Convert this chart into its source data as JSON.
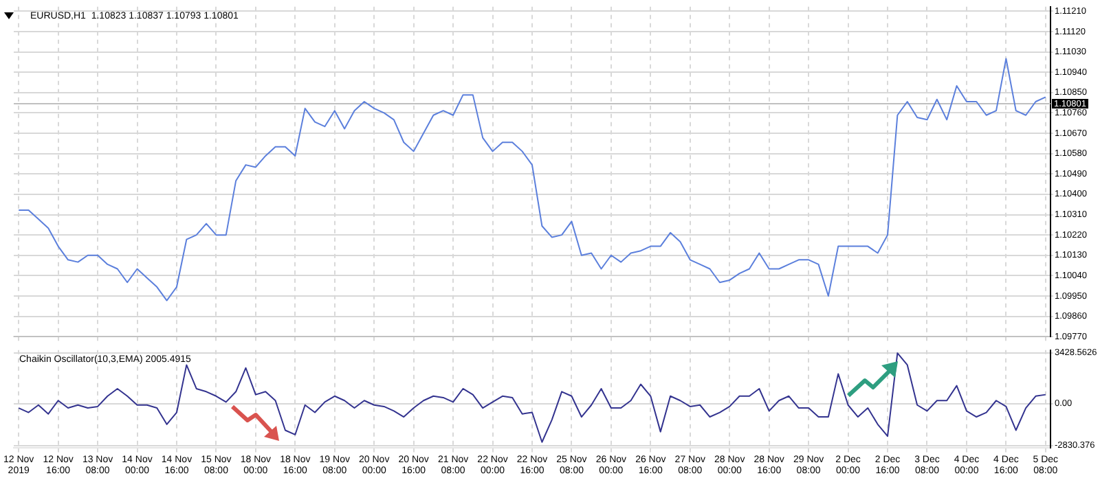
{
  "chart_data": [
    {
      "type": "line",
      "title": "EURUSD,H1  1.10823 1.10837 1.10793 1.10801",
      "series": [
        {
          "color": "#5b7fdc",
          "values": [
            1.1033,
            1.1033,
            1.1029,
            1.1025,
            1.1017,
            1.1011,
            1.101,
            1.1013,
            1.1013,
            1.1009,
            1.1007,
            1.1001,
            1.1007,
            1.1003,
            1.0999,
            1.0993,
            1.0999,
            1.102,
            1.1022,
            1.1027,
            1.1022,
            1.1022,
            1.1046,
            1.1053,
            1.1052,
            1.1057,
            1.1061,
            1.1061,
            1.1057,
            1.1078,
            1.1072,
            1.107,
            1.1077,
            1.1069,
            1.1077,
            1.1081,
            1.1078,
            1.1076,
            1.1073,
            1.1063,
            1.1059,
            1.1067,
            1.1075,
            1.1077,
            1.1075,
            1.1084,
            1.1084,
            1.1065,
            1.1059,
            1.1063,
            1.1063,
            1.1059,
            1.1053,
            1.1026,
            1.1021,
            1.1022,
            1.1028,
            1.1013,
            1.1014,
            1.1007,
            1.1013,
            1.101,
            1.1014,
            1.1015,
            1.1017,
            1.1017,
            1.1023,
            1.1019,
            1.1011,
            1.1009,
            1.1007,
            1.1001,
            1.1002,
            1.1005,
            1.1007,
            1.1014,
            1.1007,
            1.1007,
            1.1009,
            1.1011,
            1.1011,
            1.1009,
            1.0995,
            1.1017,
            1.1017,
            1.1017,
            1.1017,
            1.1014,
            1.1022,
            1.1075,
            1.1081,
            1.1074,
            1.1073,
            1.1082,
            1.1073,
            1.1088,
            1.1081,
            1.1081,
            1.1075,
            1.1077,
            1.11,
            1.1077,
            1.1075,
            1.1081,
            1.1083
          ]
        }
      ],
      "ylim": [
        1.0977,
        1.1123
      ],
      "yticks": [
        {
          "value": 1.0977,
          "label": "1.09770"
        },
        {
          "value": 1.0986,
          "label": "1.09860"
        },
        {
          "value": 1.0995,
          "label": "1.09950"
        },
        {
          "value": 1.1004,
          "label": "1.10040"
        },
        {
          "value": 1.1013,
          "label": "1.10130"
        },
        {
          "value": 1.1022,
          "label": "1.10220"
        },
        {
          "value": 1.1031,
          "label": "1.10310"
        },
        {
          "value": 1.104,
          "label": "1.10400"
        },
        {
          "value": 1.1049,
          "label": "1.10490"
        },
        {
          "value": 1.1058,
          "label": "1.10580"
        },
        {
          "value": 1.1067,
          "label": "1.10670"
        },
        {
          "value": 1.1076,
          "label": "1.10760"
        },
        {
          "value": 1.1085,
          "label": "1.10850"
        },
        {
          "value": 1.1094,
          "label": "1.10940"
        },
        {
          "value": 1.1103,
          "label": "1.11030"
        },
        {
          "value": 1.1112,
          "label": "1.11120"
        },
        {
          "value": 1.1121,
          "label": "1.11210"
        }
      ],
      "ref_lines": [
        {
          "axis": "y",
          "value": 1.10801,
          "label": "1.10801",
          "color": "#c0c0c0"
        }
      ],
      "grid": true,
      "legend": false,
      "tick_labels": "y",
      "line_style": "solid",
      "marker": "none"
    },
    {
      "type": "line",
      "title": "Chaikin Oscillator(10,3,EMA) 2005.4915",
      "categories": [
        "12 Nov 2019",
        null,
        null,
        null,
        "12 Nov 16:00",
        null,
        null,
        null,
        "13 Nov 08:00",
        null,
        null,
        null,
        "14 Nov 00:00",
        null,
        null,
        null,
        "14 Nov 16:00",
        null,
        null,
        null,
        "15 Nov 08:00",
        null,
        null,
        null,
        "18 Nov 00:00",
        null,
        null,
        null,
        "18 Nov 16:00",
        null,
        null,
        null,
        "19 Nov 08:00",
        null,
        null,
        null,
        "20 Nov 00:00",
        null,
        null,
        null,
        "20 Nov 16:00",
        null,
        null,
        null,
        "21 Nov 08:00",
        null,
        null,
        null,
        "22 Nov 00:00",
        null,
        null,
        null,
        "22 Nov 16:00",
        null,
        null,
        null,
        "25 Nov 08:00",
        null,
        null,
        null,
        "26 Nov 00:00",
        null,
        null,
        null,
        "26 Nov 16:00",
        null,
        null,
        null,
        "27 Nov 08:00",
        null,
        null,
        null,
        "28 Nov 00:00",
        null,
        null,
        null,
        "28 Nov 16:00",
        null,
        null,
        null,
        "29 Nov 08:00",
        null,
        null,
        null,
        "2 Dec 00:00",
        null,
        null,
        null,
        "2 Dec 16:00",
        null,
        null,
        null,
        "3 Dec 08:00",
        null,
        null,
        null,
        "4 Dec 00:00",
        null,
        null,
        null,
        "4 Dec 16:00",
        null,
        null,
        null,
        "5 Dec 08:00"
      ],
      "series": [
        {
          "color": "#33338f",
          "values": [
            -300,
            -600,
            -100,
            -700,
            200,
            -300,
            -100,
            -300,
            -200,
            500,
            1000,
            500,
            -100,
            -100,
            -300,
            -1400,
            -600,
            2600,
            1000,
            800,
            500,
            100,
            800,
            2400,
            600,
            800,
            200,
            -1800,
            -2100,
            -100,
            -600,
            100,
            500,
            200,
            -300,
            200,
            -100,
            -200,
            -500,
            -900,
            -300,
            200,
            500,
            400,
            100,
            1000,
            600,
            -300,
            100,
            500,
            400,
            -700,
            -600,
            -2600,
            -1100,
            800,
            500,
            -900,
            -100,
            1000,
            -300,
            -300,
            200,
            1300,
            500,
            -1900,
            500,
            200,
            -200,
            -100,
            -900,
            -600,
            -200,
            500,
            500,
            1000,
            -500,
            200,
            500,
            -300,
            -300,
            -900,
            -900,
            2000,
            -100,
            -900,
            -300,
            -1400,
            -2200,
            3400,
            2600,
            -100,
            -500,
            200,
            200,
            1200,
            -500,
            -900,
            -600,
            200,
            -200,
            -1800,
            -300,
            500,
            600
          ]
        }
      ],
      "ylim": [
        -3000,
        3600
      ],
      "yticks": [
        -2830.376,
        {
          "value": 0,
          "label": "0.00"
        },
        3428.5626
      ],
      "grid": true,
      "legend": false,
      "line_style": "solid",
      "marker": "none"
    }
  ]
}
